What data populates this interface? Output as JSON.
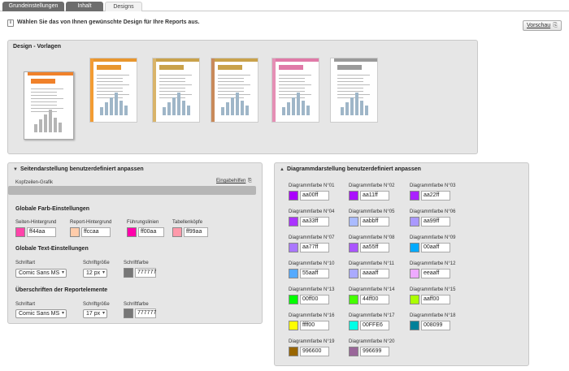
{
  "tabs": [
    {
      "label": "Grundeinstellungen"
    },
    {
      "label": "Inhalt"
    },
    {
      "label": "Designs"
    }
  ],
  "info_text": "Wählen Sie das von Ihnen gewünschte Design für Ihre Reports aus.",
  "preview_label": "Vorschau",
  "templates_panel": {
    "title": "Design - Vorlagen",
    "templates": [
      {
        "accent": "#f0812a",
        "side": "#ffffff"
      },
      {
        "accent": "#e8962e",
        "side": "#f39c33"
      },
      {
        "accent": "#c9a24b",
        "side": "#d9b46a"
      },
      {
        "accent": "#c9a24b",
        "side": "#c98a5a"
      },
      {
        "accent": "#e07aa8",
        "side": "#e58fb5"
      },
      {
        "accent": "#9a9a9a",
        "side": "#ffffff"
      }
    ]
  },
  "side_panel": {
    "title": "Seitendarstellung benutzerdefiniert anpassen",
    "header_graphic_label": "Kopfzeilen-Grafik",
    "insert_link": "Eingabehilfen",
    "colors_heading": "Globale Farb-Einstellungen",
    "colors": [
      {
        "label": "Seiten-Hintergrund",
        "color": "#ff44aa",
        "value": "ff44aa"
      },
      {
        "label": "Report-Hintergrund",
        "color": "#ffccaa",
        "value": "ffccaa"
      },
      {
        "label": "Führungslinien",
        "color": "#ff00aa",
        "value": "ff00aa"
      },
      {
        "label": "Tabellenköpfe",
        "color": "#ff99aa",
        "value": "ff99aa"
      }
    ],
    "text_heading": "Globale Text-Einstellungen",
    "text_settings": {
      "font_label": "Schriftart",
      "font_value": "Comic Sans MS",
      "size_label": "Schriftgröße",
      "size_value": "12 px",
      "color_label": "Schriftfarbe",
      "color": "#777777",
      "color_value": "777777"
    },
    "report_heading": "Überschriften der Reportelemente",
    "report_settings": {
      "font_label": "Schriftart",
      "font_value": "Comic Sans MS",
      "size_label": "Schriftgröße",
      "size_value": "17 px",
      "color_label": "Schriftfarbe",
      "color": "#777777",
      "color_value": "777777"
    }
  },
  "chart_panel": {
    "title": "Diagrammdarstellung benutzerdefiniert anpassen",
    "colors": [
      {
        "label": "Diagrammfarbe N°01",
        "color": "#aa00ff",
        "value": "aa00ff"
      },
      {
        "label": "Diagrammfarbe N°02",
        "color": "#aa11ff",
        "value": "aa11ff"
      },
      {
        "label": "Diagrammfarbe N°03",
        "color": "#aa22ff",
        "value": "aa22ff"
      },
      {
        "label": "Diagrammfarbe N°04",
        "color": "#aa33ff",
        "value": "aa33ff"
      },
      {
        "label": "Diagrammfarbe N°05",
        "color": "#aabbff",
        "value": "aabbff"
      },
      {
        "label": "Diagrammfarbe N°06",
        "color": "#aa99ff",
        "value": "aa99ff"
      },
      {
        "label": "Diagrammfarbe N°07",
        "color": "#aa77ff",
        "value": "aa77ff"
      },
      {
        "label": "Diagrammfarbe N°08",
        "color": "#aa55ff",
        "value": "aa55ff"
      },
      {
        "label": "Diagrammfarbe N°09",
        "color": "#00aaff",
        "value": "00aaff"
      },
      {
        "label": "Diagrammfarbe N°10",
        "color": "#55aaff",
        "value": "55aaff"
      },
      {
        "label": "Diagrammfarbe N°11",
        "color": "#aaaaff",
        "value": "aaaaff"
      },
      {
        "label": "Diagrammfarbe N°12",
        "color": "#eeaaff",
        "value": "eeaaff"
      },
      {
        "label": "Diagrammfarbe N°13",
        "color": "#00ff00",
        "value": "00ff00"
      },
      {
        "label": "Diagrammfarbe N°14",
        "color": "#44ff00",
        "value": "44ff00"
      },
      {
        "label": "Diagrammfarbe N°15",
        "color": "#aaff00",
        "value": "aaff00"
      },
      {
        "label": "Diagrammfarbe N°16",
        "color": "#ffff00",
        "value": "ffff00"
      },
      {
        "label": "Diagrammfarbe N°17",
        "color": "#00FFE6",
        "value": "00FFE6"
      },
      {
        "label": "Diagrammfarbe N°18",
        "color": "#008099",
        "value": "008099"
      },
      {
        "label": "Diagrammfarbe N°19",
        "color": "#996600",
        "value": "996600"
      },
      {
        "label": "Diagrammfarbe N°20",
        "color": "#996699",
        "value": "996699"
      }
    ]
  }
}
